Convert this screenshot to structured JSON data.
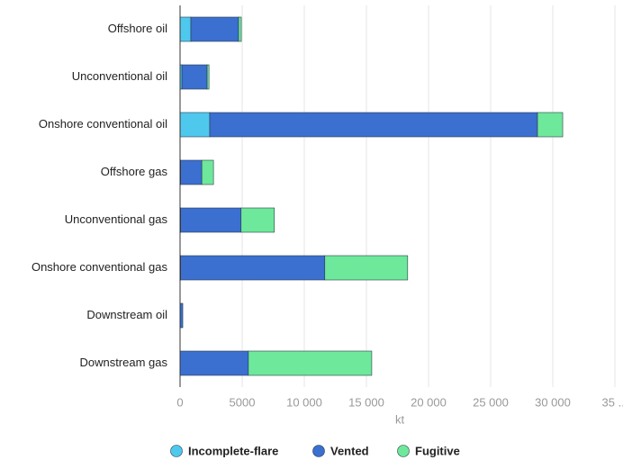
{
  "chart_data": {
    "type": "stacked-bar-horizontal",
    "categories": [
      "Offshore oil",
      "Unconventional oil",
      "Onshore conventional oil",
      "Offshore gas",
      "Unconventional gas",
      "Onshore conventional gas",
      "Downstream oil",
      "Downstream gas"
    ],
    "series": [
      {
        "name": "Incomplete-flare",
        "color": "#4fc8ee",
        "values": [
          870,
          150,
          2390,
          50,
          50,
          50,
          0,
          0
        ]
      },
      {
        "name": "Vented",
        "color": "#3b6fd0",
        "values": [
          3840,
          2030,
          26380,
          1700,
          4860,
          11600,
          220,
          5500
        ]
      },
      {
        "name": "Fugitive",
        "color": "#6ee89a",
        "values": [
          220,
          150,
          2030,
          940,
          2680,
          6670,
          0,
          9930
        ]
      }
    ],
    "xlabel": "kt",
    "xlim": [
      0,
      35000
    ],
    "xticks": [
      0,
      5000,
      {
        "value": 10000,
        "label": "10 000"
      },
      {
        "value": 15000,
        "label": "15 000"
      },
      {
        "value": 20000,
        "label": "20 000"
      },
      {
        "value": 25000,
        "label": "25 000"
      },
      {
        "value": 30000,
        "label": "30 000"
      },
      {
        "value": 35000,
        "label": "35 ..."
      }
    ],
    "grid": true,
    "legend": "bottom"
  }
}
